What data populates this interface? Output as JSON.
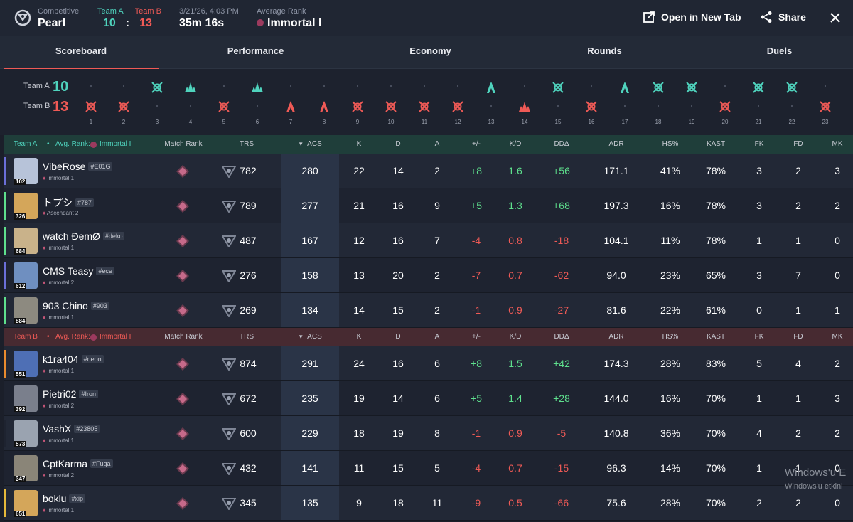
{
  "header": {
    "mode_label": "Competitive",
    "map": "Pearl",
    "team_a_label": "Team A",
    "team_b_label": "Team B",
    "team_a_score": "10",
    "colon": ":",
    "team_b_score": "13",
    "datetime": "3/21/26, 4:03 PM",
    "duration": "35m 16s",
    "avg_rank_label": "Average Rank",
    "avg_rank": "Immortal I",
    "open_new_tab": "Open in New Tab",
    "share": "Share"
  },
  "tabs": [
    "Scoreboard",
    "Performance",
    "Economy",
    "Rounds",
    "Duels"
  ],
  "rounds": {
    "team_a_label": "Team A",
    "team_b_label": "Team B",
    "team_a_score": "10",
    "team_b_score": "13",
    "numbers": [
      "1",
      "2",
      "3",
      "4",
      "5",
      "6",
      "7",
      "8",
      "9",
      "10",
      "11",
      "12",
      "13",
      "14",
      "15",
      "16",
      "17",
      "18",
      "19",
      "20",
      "21",
      "22",
      "23"
    ],
    "winners": [
      "B",
      "B",
      "A",
      "A",
      "B",
      "A",
      "B",
      "B",
      "B",
      "B",
      "B",
      "B",
      "A",
      "B",
      "A",
      "B",
      "A",
      "A",
      "A",
      "B",
      "A",
      "A",
      "B"
    ],
    "outcomes": [
      "elim",
      "elim",
      "elim",
      "spike",
      "elim",
      "spike",
      "defuse",
      "defuse",
      "elim",
      "elim",
      "elim",
      "elim",
      "defuse",
      "spike",
      "elim",
      "elim",
      "defuse",
      "elim",
      "elim",
      "elim",
      "elim",
      "elim",
      "elim"
    ]
  },
  "columns": [
    "Match Rank",
    "TRS",
    "ACS",
    "K",
    "D",
    "A",
    "+/-",
    "K/D",
    "DDΔ",
    "ADR",
    "HS%",
    "KAST",
    "FK",
    "FD",
    "MK"
  ],
  "teams": [
    {
      "label": "Team A",
      "dot": "•",
      "avg_rank_label": "Avg. Rank:",
      "avg_rank": "Immortal I",
      "players": [
        {
          "name": "VibeRose",
          "tag": "#E01G",
          "rank": "Immortal 1",
          "level": "102",
          "trs": "782",
          "acs": "280",
          "k": "22",
          "d": "14",
          "a": "2",
          "pm": "+8",
          "kd": "1.6",
          "ddd": "+56",
          "adr": "171.1",
          "hs": "41%",
          "kast": "78%",
          "fk": "3",
          "fd": "2",
          "mk": "3",
          "bar": "#6b6fd8",
          "av": "#b7c3d9"
        },
        {
          "name": "トプシ",
          "tag": "#787",
          "rank": "Ascendant 2",
          "level": "326",
          "trs": "789",
          "acs": "277",
          "k": "21",
          "d": "16",
          "a": "9",
          "pm": "+5",
          "kd": "1.3",
          "ddd": "+68",
          "adr": "197.3",
          "hs": "16%",
          "kast": "78%",
          "fk": "3",
          "fd": "2",
          "mk": "2",
          "bar": "#5ee08d",
          "av": "#d4a65a"
        },
        {
          "name": "watch ÐemØ",
          "tag": "#deko",
          "rank": "Immortal 1",
          "level": "684",
          "trs": "487",
          "acs": "167",
          "k": "12",
          "d": "16",
          "a": "7",
          "pm": "-4",
          "kd": "0.8",
          "ddd": "-18",
          "adr": "104.1",
          "hs": "11%",
          "kast": "78%",
          "fk": "1",
          "fd": "1",
          "mk": "0",
          "bar": "#5ee08d",
          "av": "#c9b28a"
        },
        {
          "name": "CMS Teasy",
          "tag": "#ece",
          "rank": "Immortal 2",
          "level": "612",
          "trs": "276",
          "acs": "158",
          "k": "13",
          "d": "20",
          "a": "2",
          "pm": "-7",
          "kd": "0.7",
          "ddd": "-62",
          "adr": "94.0",
          "hs": "23%",
          "kast": "65%",
          "fk": "3",
          "fd": "7",
          "mk": "0",
          "bar": "#6b6fd8",
          "av": "#6f8fc0"
        },
        {
          "name": "903 Chino",
          "tag": "#903",
          "rank": "Immortal 1",
          "level": "884",
          "trs": "269",
          "acs": "134",
          "k": "14",
          "d": "15",
          "a": "2",
          "pm": "-1",
          "kd": "0.9",
          "ddd": "-27",
          "adr": "81.6",
          "hs": "22%",
          "kast": "61%",
          "fk": "0",
          "fd": "1",
          "mk": "1",
          "bar": "#5ee08d",
          "av": "#8d8a80"
        }
      ]
    },
    {
      "label": "Team B",
      "dot": "•",
      "avg_rank_label": "Avg. Rank:",
      "avg_rank": "Immortal I",
      "players": [
        {
          "name": "k1ra404",
          "tag": "#neon",
          "rank": "Immortal 1",
          "level": "551",
          "trs": "874",
          "acs": "291",
          "k": "24",
          "d": "16",
          "a": "6",
          "pm": "+8",
          "kd": "1.5",
          "ddd": "+42",
          "adr": "174.3",
          "hs": "28%",
          "kast": "83%",
          "fk": "5",
          "fd": "4",
          "mk": "2",
          "bar": "#e98b2e",
          "av": "#4e6fb5"
        },
        {
          "name": "Pietri02",
          "tag": "#Iron",
          "rank": "Immortal 2",
          "level": "392",
          "trs": "672",
          "acs": "235",
          "k": "19",
          "d": "14",
          "a": "6",
          "pm": "+5",
          "kd": "1.4",
          "ddd": "+28",
          "adr": "144.0",
          "hs": "16%",
          "kast": "70%",
          "fk": "1",
          "fd": "1",
          "mk": "3",
          "bar": "#1e2330",
          "av": "#7a7f8c"
        },
        {
          "name": "VashX",
          "tag": "#23805",
          "rank": "Immortal 1",
          "level": "573",
          "trs": "600",
          "acs": "229",
          "k": "18",
          "d": "19",
          "a": "8",
          "pm": "-1",
          "kd": "0.9",
          "ddd": "-5",
          "adr": "140.8",
          "hs": "36%",
          "kast": "70%",
          "fk": "4",
          "fd": "2",
          "mk": "2",
          "bar": "#1e2330",
          "av": "#9aa3b0"
        },
        {
          "name": "CptKarma",
          "tag": "#Fuga",
          "rank": "Immortal 2",
          "level": "347",
          "trs": "432",
          "acs": "141",
          "k": "11",
          "d": "15",
          "a": "5",
          "pm": "-4",
          "kd": "0.7",
          "ddd": "-15",
          "adr": "96.3",
          "hs": "14%",
          "kast": "70%",
          "fk": "1",
          "fd": "1",
          "mk": "0",
          "bar": "#1e2330",
          "av": "#8a8578"
        },
        {
          "name": "boklu",
          "tag": "#xip",
          "rank": "Immortal 1",
          "level": "651",
          "trs": "345",
          "acs": "135",
          "k": "9",
          "d": "18",
          "a": "11",
          "pm": "-9",
          "kd": "0.5",
          "ddd": "-66",
          "adr": "75.6",
          "hs": "28%",
          "kast": "70%",
          "fk": "2",
          "fd": "2",
          "mk": "0",
          "bar": "#e6b93a",
          "av": "#d4a65a"
        }
      ]
    }
  ],
  "watermark": {
    "line1": "Windows'u E",
    "line2": "Windows'u etkinl"
  },
  "colors": {
    "team_a": "#4fd3bd",
    "team_b": "#ef5a56",
    "positive": "#5ee08d",
    "negative": "#ef5a56"
  }
}
